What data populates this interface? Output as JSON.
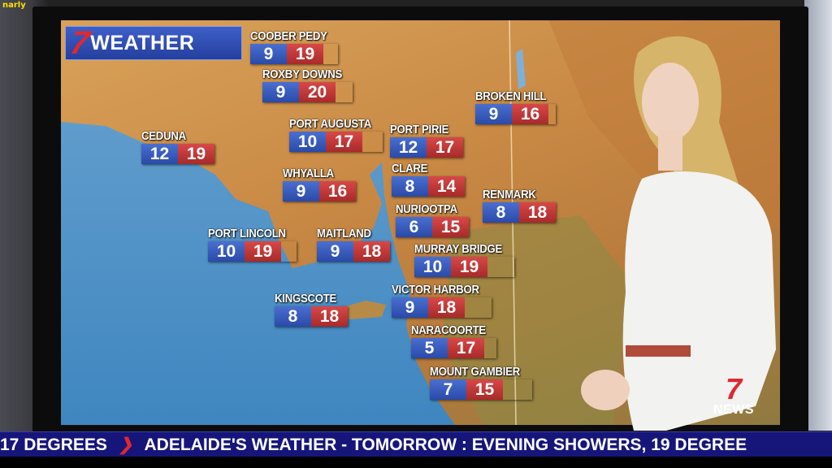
{
  "channel_tag": "narly",
  "brand": {
    "logo": "7",
    "title": "WEATHER"
  },
  "cities": [
    {
      "name": "COOBER PEDY",
      "min": "9",
      "max": "19"
    },
    {
      "name": "ROXBY DOWNS",
      "min": "9",
      "max": "20"
    },
    {
      "name": "BROKEN HILL",
      "min": "9",
      "max": "16"
    },
    {
      "name": "CEDUNA",
      "min": "12",
      "max": "19"
    },
    {
      "name": "PORT AUGUSTA",
      "min": "10",
      "max": "17"
    },
    {
      "name": "PORT PIRIE",
      "min": "12",
      "max": "17"
    },
    {
      "name": "WHYALLA",
      "min": "9",
      "max": "16"
    },
    {
      "name": "CLARE",
      "min": "8",
      "max": "14"
    },
    {
      "name": "RENMARK",
      "min": "8",
      "max": "18"
    },
    {
      "name": "NURIOOTPA",
      "min": "6",
      "max": "15"
    },
    {
      "name": "PORT LINCOLN",
      "min": "10",
      "max": "19"
    },
    {
      "name": "MAITLAND",
      "min": "9",
      "max": "18"
    },
    {
      "name": "MURRAY BRIDGE",
      "min": "10",
      "max": "19"
    },
    {
      "name": "KINGSCOTE",
      "min": "8",
      "max": "18"
    },
    {
      "name": "VICTOR HARBOR",
      "min": "9",
      "max": "18"
    },
    {
      "name": "NARACOORTE",
      "min": "5",
      "max": "17"
    },
    {
      "name": "MOUNT GAMBIER",
      "min": "7",
      "max": "15"
    }
  ],
  "ticker": {
    "left": "17 DEGREES",
    "right": "ADELAIDE'S WEATHER - TOMORROW : EVENING SHOWERS, 19 DEGREE"
  },
  "news_logo": {
    "mark": "7",
    "text": "NEWS"
  },
  "colors": {
    "min_temp": "#2a4aa8",
    "max_temp": "#a82a2a",
    "ticker": "#16167a",
    "logo_red": "#e0282e"
  }
}
